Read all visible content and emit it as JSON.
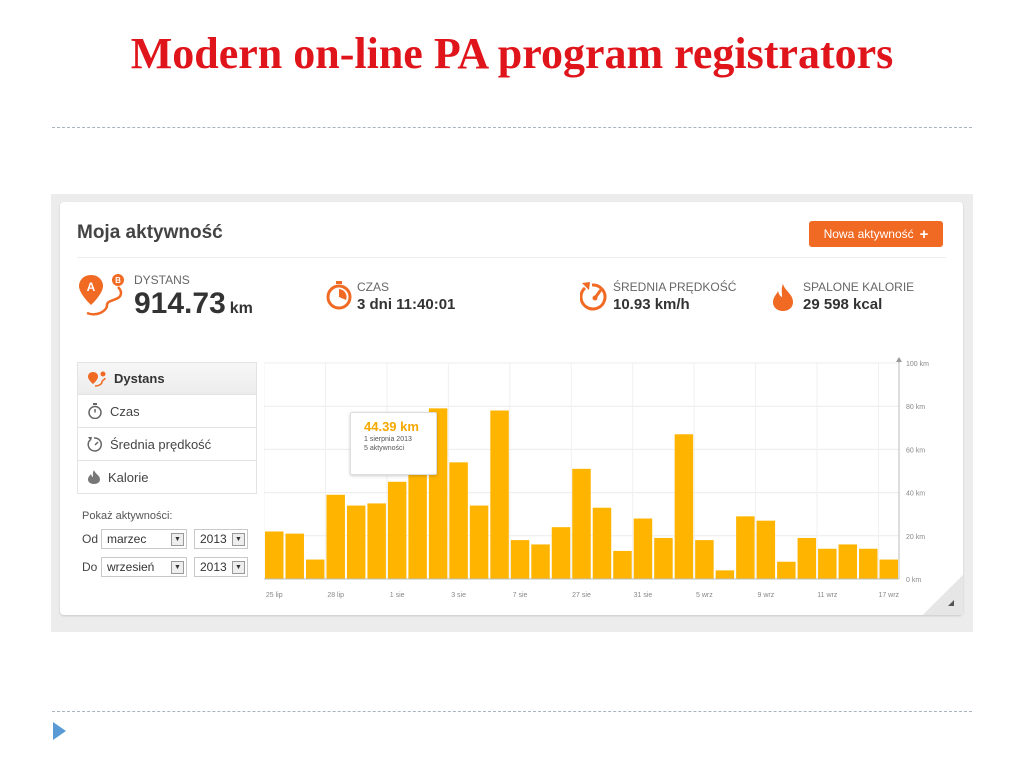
{
  "slide": {
    "title": "Modern on-line PA program registrators"
  },
  "app": {
    "title": "Moja aktywność",
    "new_button_label": "Nowa aktywność",
    "new_button_plus": "+",
    "accent_color": "#f06a24",
    "bar_color": "#ffb400"
  },
  "stats": {
    "distance": {
      "label": "DYSTANS",
      "value": "914.73",
      "unit": "km",
      "icon": "route-a-b-icon"
    },
    "time": {
      "label": "CZAS",
      "value": "3 dni 11:40:01",
      "icon": "stopwatch-icon"
    },
    "speed": {
      "label": "ŚREDNIA PRĘDKOŚĆ",
      "value": "10.93 km/h",
      "icon": "speedometer-icon"
    },
    "calories": {
      "label": "SPALONE KALORIE",
      "value": "29 598 kcal",
      "icon": "flame-icon"
    }
  },
  "sidebar": {
    "items": [
      {
        "label": "Dystans",
        "icon": "route-icon",
        "active": true
      },
      {
        "label": "Czas",
        "icon": "stopwatch-icon",
        "active": false
      },
      {
        "label": "Średnia prędkość",
        "icon": "speedometer-icon",
        "active": false
      },
      {
        "label": "Kalorie",
        "icon": "flame-icon",
        "active": false
      }
    ],
    "filter_label": "Pokaż aktywności:",
    "from_label": "Od",
    "to_label": "Do",
    "from_month": "marzec",
    "from_year": "2013",
    "to_month": "wrzesień",
    "to_year": "2013"
  },
  "tooltip": {
    "value": "44.39 km",
    "date": "1 sierpnia 2013",
    "count": "5 aktywności"
  },
  "chart_data": {
    "type": "bar",
    "x_tick_labels": [
      "25 lip",
      "28 lip",
      "1 sie",
      "3 sie",
      "7 sie",
      "27 sie",
      "31 sie",
      "5 wrz",
      "9 wrz",
      "11 wrz",
      "17 wrz"
    ],
    "y_tick_labels": [
      "0 km",
      "20 km",
      "40 km",
      "60 km",
      "80 km",
      "100 km"
    ],
    "ylim": [
      0,
      100
    ],
    "grid": true,
    "values": [
      22,
      21,
      9,
      39,
      34,
      35,
      45,
      49,
      79,
      54,
      34,
      78,
      18,
      16,
      24,
      51,
      33,
      13,
      28,
      19,
      67,
      18,
      4,
      29,
      27,
      8,
      19,
      14,
      16,
      14,
      9
    ]
  }
}
